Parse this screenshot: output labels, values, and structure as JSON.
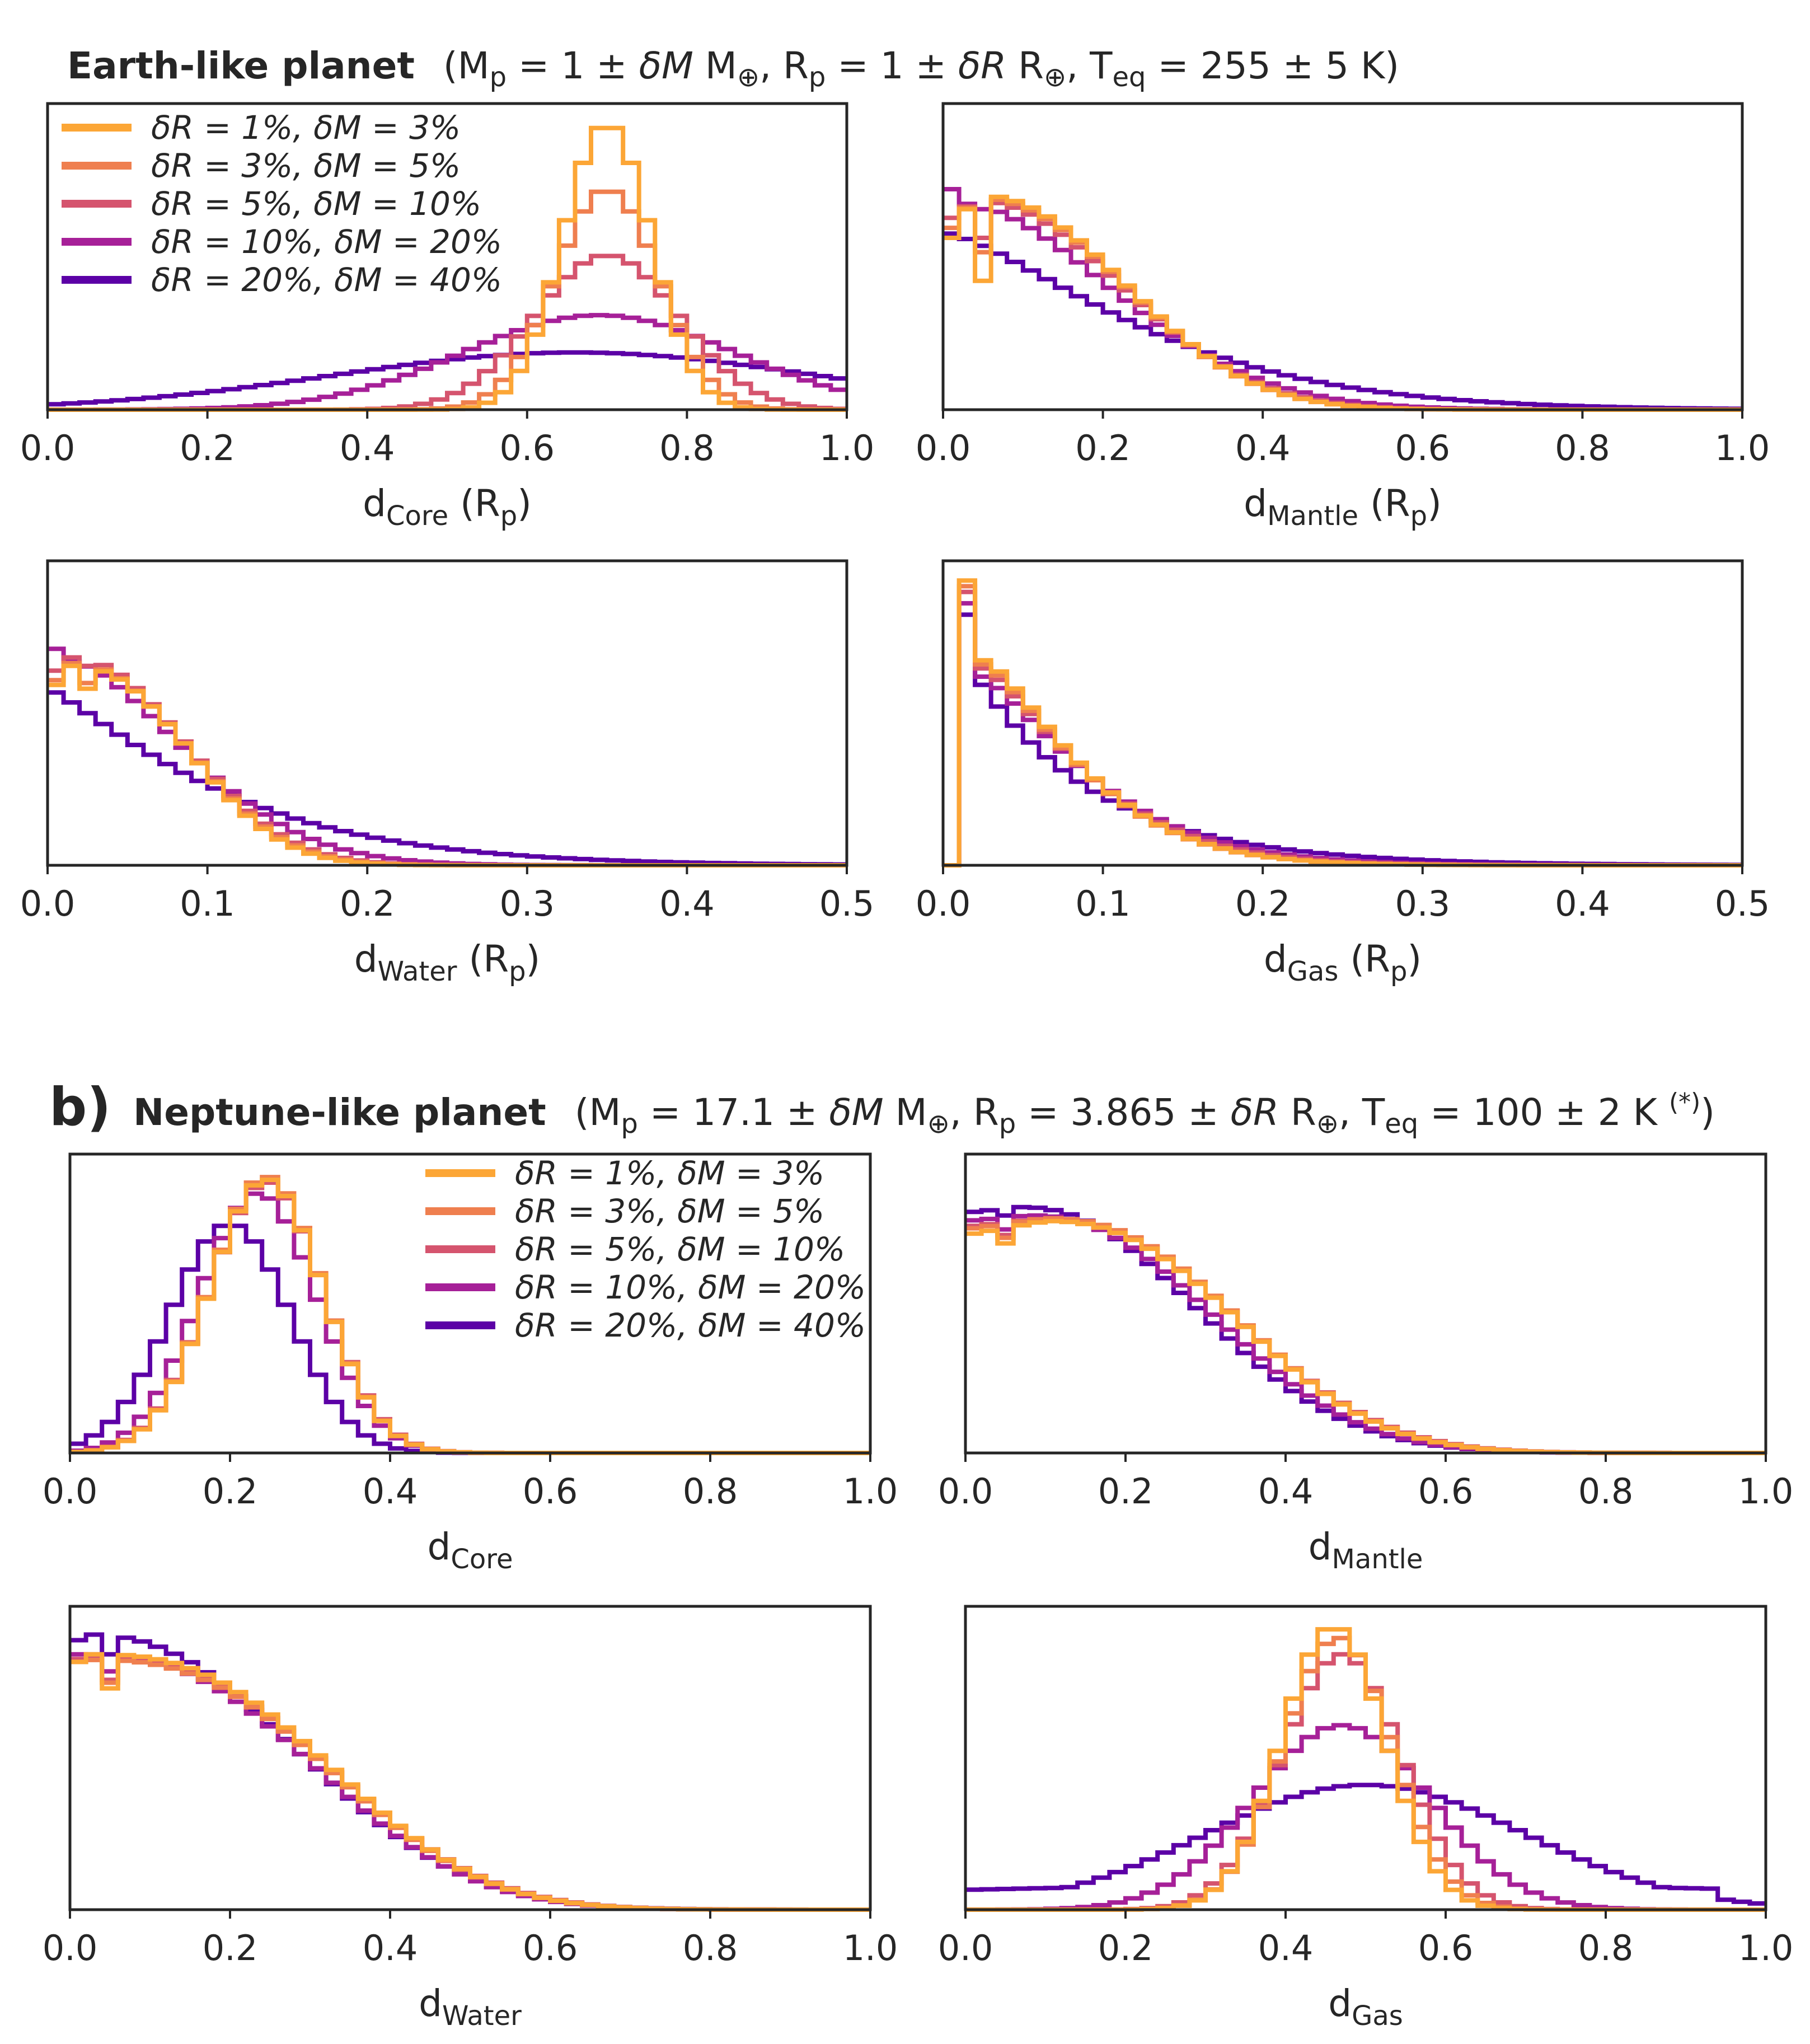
{
  "panel_a": {
    "title_bold": "Earth-like planet",
    "title_params": {
      "mp": "M",
      "mp_sub": "p",
      "mp_eq": " = 1 ± ",
      "dm": "δM",
      "m_unit": " M",
      "earth": "⊕",
      "sep1": ", R",
      "rp_sub": "p",
      "rp_eq": " = 1 ± ",
      "dr": "δR",
      "r_unit": " R",
      "sep2": ", T",
      "teq_sub": "eq",
      "teq_eq": " = 255 ± 5 K)",
      "open": "("
    }
  },
  "panel_b": {
    "label": "b)",
    "title_bold": "Neptune-like planet",
    "title_params": {
      "mp": "M",
      "mp_sub": "p",
      "mp_eq": " = 17.1 ± ",
      "dm": "δM",
      "m_unit": " M",
      "earth": "⊕",
      "sep1": ", R",
      "rp_sub": "p",
      "rp_eq": " = 3.865 ± ",
      "dr": "δR",
      "r_unit": " R",
      "sep2": ", T",
      "teq_sub": "eq",
      "teq_eq": " = 100 ± 2 K ",
      "note": "(*)",
      "close": ")",
      "open": "("
    }
  },
  "legend": [
    {
      "label": "δR = 1%, δM = 3%",
      "color": "#fca636"
    },
    {
      "label": "δR = 3%, δM = 5%",
      "color": "#ef7f4f"
    },
    {
      "label": "δR = 5%, δM = 10%",
      "color": "#d5546e"
    },
    {
      "label": "δR = 10%, δM = 20%",
      "color": "#a62098"
    },
    {
      "label": "δR = 20%, δM = 40%",
      "color": "#5c01a6"
    }
  ],
  "chart_data": [
    {
      "type": "step-histogram",
      "panel": "a",
      "id": "a-core",
      "xlabel_main": "d",
      "xlabel_sub": "Core",
      "xlabel_suffix": " (R",
      "xlabel_suffix_sub": "p",
      "xlabel_close": ")",
      "xlim": [
        0,
        1
      ],
      "ylim": [
        0,
        1
      ],
      "xticks": [
        "0.0",
        "0.2",
        "0.4",
        "0.6",
        "0.8",
        "1.0"
      ],
      "shape": {
        "type": "gauss",
        "lo": 0,
        "hi": 1
      },
      "series": [
        {
          "name": "δR = 1%, δM = 3%",
          "mu": 0.7,
          "sigma": 0.055,
          "amp": 1.0
        },
        {
          "name": "δR = 3%, δM = 5%",
          "mu": 0.7,
          "sigma": 0.065,
          "amp": 0.77
        },
        {
          "name": "δR = 5%, δM = 10%",
          "mu": 0.7,
          "sigma": 0.09,
          "amp": 0.54
        },
        {
          "name": "δR = 10%, δM = 20%",
          "mu": 0.69,
          "sigma": 0.17,
          "amp": 0.33
        },
        {
          "name": "δR = 20%, δM = 40%",
          "mu": 0.66,
          "sigma": 0.3,
          "amp": 0.2
        }
      ]
    },
    {
      "type": "step-histogram",
      "panel": "a",
      "id": "a-mantle",
      "xlabel_main": "d",
      "xlabel_sub": "Mantle",
      "xlabel_suffix": " (R",
      "xlabel_suffix_sub": "p",
      "xlabel_close": ")",
      "xlim": [
        0,
        1
      ],
      "ylim": [
        0,
        1
      ],
      "xticks": [
        "0.0",
        "0.2",
        "0.4",
        "0.6",
        "0.8",
        "1.0"
      ],
      "shape": {
        "type": "decay",
        "lo": 0,
        "hi": 1
      },
      "series": [
        {
          "name": "δR = 1%, δM = 3%",
          "start": 0.55,
          "peak_x": 0.04,
          "peak": 0.75,
          "scale": 0.17,
          "power": 2.2,
          "dip": 0.45
        },
        {
          "name": "δR = 3%, δM = 5%",
          "start": 0.6,
          "peak_x": 0.04,
          "peak": 0.74,
          "scale": 0.17,
          "power": 2.2,
          "dip": 0.55
        },
        {
          "name": "δR = 5%, δM = 10%",
          "start": 0.65,
          "peak_x": 0.04,
          "peak": 0.73,
          "scale": 0.17,
          "power": 2.1,
          "dip": 0.6
        },
        {
          "name": "δR = 10%, δM = 20%",
          "start": 0.82,
          "peak_x": 0.02,
          "peak": 0.72,
          "scale": 0.18,
          "power": 1.9,
          "dip": 0.7
        },
        {
          "name": "δR = 20%, δM = 40%",
          "start": 1.0,
          "peak_x": 0.0,
          "peak": 0.62,
          "scale": 0.2,
          "power": 1.4,
          "dip": 0.62
        }
      ]
    },
    {
      "type": "step-histogram",
      "panel": "a",
      "id": "a-water",
      "xlabel_main": "d",
      "xlabel_sub": "Water",
      "xlabel_suffix": " (R",
      "xlabel_suffix_sub": "p",
      "xlabel_close": ")",
      "xlim": [
        0,
        0.5
      ],
      "ylim": [
        0,
        1
      ],
      "xticks": [
        "0.0",
        "0.1",
        "0.2",
        "0.3",
        "0.4",
        "0.5"
      ],
      "shape": {
        "type": "decay",
        "lo": 0,
        "hi": 0.5
      },
      "series": [
        {
          "name": "δR = 1%, δM = 3%",
          "start": 0.6,
          "peak_x": 0.03,
          "peak": 0.7,
          "scale": 0.13,
          "power": 2.3,
          "dip": 0.62
        },
        {
          "name": "δR = 3%, δM = 5%",
          "start": 0.62,
          "peak_x": 0.03,
          "peak": 0.71,
          "scale": 0.13,
          "power": 2.2,
          "dip": 0.64
        },
        {
          "name": "δR = 5%, δM = 10%",
          "start": 0.66,
          "peak_x": 0.03,
          "peak": 0.73,
          "scale": 0.13,
          "power": 2.1,
          "dip": 0.7
        },
        {
          "name": "δR = 10%, δM = 20%",
          "start": 0.8,
          "peak_x": 0.02,
          "peak": 0.72,
          "scale": 0.14,
          "power": 1.8,
          "dip": 0.72
        },
        {
          "name": "δR = 20%, δM = 40%",
          "start": 1.0,
          "peak_x": 0.0,
          "peak": 0.62,
          "scale": 0.16,
          "power": 1.2,
          "dip": 0.62
        }
      ]
    },
    {
      "type": "step-histogram",
      "panel": "a",
      "id": "a-gas",
      "xlabel_main": "d",
      "xlabel_sub": "Gas",
      "xlabel_suffix": " (R",
      "xlabel_suffix_sub": "p",
      "xlabel_close": ")",
      "xlim": [
        0,
        0.5
      ],
      "ylim": [
        0,
        1
      ],
      "xticks": [
        "0.0",
        "0.1",
        "0.2",
        "0.3",
        "0.4",
        "0.5"
      ],
      "shape": {
        "type": "gaslike",
        "lo": 0,
        "hi": 0.5
      },
      "series": [
        {
          "name": "δR = 1%, δM = 3%",
          "peak": 1.0,
          "scale": 0.06,
          "power": 1.4
        },
        {
          "name": "δR = 3%, δM = 5%",
          "peak": 0.98,
          "scale": 0.06,
          "power": 1.4
        },
        {
          "name": "δR = 5%, δM = 10%",
          "peak": 0.96,
          "scale": 0.062,
          "power": 1.35
        },
        {
          "name": "δR = 10%, δM = 20%",
          "peak": 0.92,
          "scale": 0.065,
          "power": 1.3
        },
        {
          "name": "δR = 20%, δM = 40%",
          "peak": 0.88,
          "scale": 0.06,
          "power": 1.0
        }
      ]
    },
    {
      "type": "step-histogram",
      "panel": "b",
      "id": "b-core",
      "xlabel_main": "d",
      "xlabel_sub": "Core",
      "xlabel_suffix": "",
      "xlabel_suffix_sub": "",
      "xlabel_close": "",
      "xlim": [
        0,
        1
      ],
      "ylim": [
        0,
        1
      ],
      "xticks": [
        "0.0",
        "0.2",
        "0.4",
        "0.6",
        "0.8",
        "1.0"
      ],
      "shape": {
        "type": "gauss",
        "lo": 0,
        "hi": 1
      },
      "series": [
        {
          "name": "δR = 1%, δM = 3%",
          "mu": 0.245,
          "sigma": 0.07,
          "amp": 0.98
        },
        {
          "name": "δR = 3%, δM = 5%",
          "mu": 0.245,
          "sigma": 0.07,
          "amp": 0.99
        },
        {
          "name": "δR = 5%, δM = 10%",
          "mu": 0.245,
          "sigma": 0.071,
          "amp": 0.97
        },
        {
          "name": "δR = 10%, δM = 20%",
          "mu": 0.235,
          "sigma": 0.073,
          "amp": 0.93
        },
        {
          "name": "δR = 20%, δM = 40%",
          "mu": 0.2,
          "sigma": 0.075,
          "amp": 0.82
        }
      ]
    },
    {
      "type": "step-histogram",
      "panel": "b",
      "id": "b-mantle",
      "xlabel_main": "d",
      "xlabel_sub": "Mantle",
      "xlabel_suffix": "",
      "xlabel_suffix_sub": "",
      "xlabel_close": "",
      "xlim": [
        0,
        1
      ],
      "ylim": [
        0,
        1
      ],
      "xticks": [
        "0.0",
        "0.2",
        "0.4",
        "0.6",
        "0.8",
        "1.0"
      ],
      "shape": {
        "type": "decay",
        "lo": 0,
        "hi": 1
      },
      "series": [
        {
          "name": "δR = 1%, δM = 3%",
          "start": 0.78,
          "peak_x": 0.1,
          "peak": 0.83,
          "scale": 0.21,
          "power": 2.4,
          "dip": 0.75
        },
        {
          "name": "δR = 3%, δM = 5%",
          "start": 0.8,
          "peak_x": 0.1,
          "peak": 0.84,
          "scale": 0.21,
          "power": 2.4,
          "dip": 0.77
        },
        {
          "name": "δR = 5%, δM = 10%",
          "start": 0.81,
          "peak_x": 0.1,
          "peak": 0.84,
          "scale": 0.21,
          "power": 2.35,
          "dip": 0.78
        },
        {
          "name": "δR = 10%, δM = 20%",
          "start": 0.83,
          "peak_x": 0.08,
          "peak": 0.85,
          "scale": 0.205,
          "power": 2.3,
          "dip": 0.8
        },
        {
          "name": "δR = 20%, δM = 40%",
          "start": 0.86,
          "peak_x": 0.07,
          "peak": 0.88,
          "scale": 0.2,
          "power": 2.2,
          "dip": 0.85
        }
      ]
    },
    {
      "type": "step-histogram",
      "panel": "b",
      "id": "b-water",
      "xlabel_main": "d",
      "xlabel_sub": "Water",
      "xlabel_suffix": "",
      "xlabel_suffix_sub": "",
      "xlabel_close": "",
      "xlim": [
        0,
        1
      ],
      "ylim": [
        0,
        1
      ],
      "xticks": [
        "0.0",
        "0.2",
        "0.4",
        "0.6",
        "0.8",
        "1.0"
      ],
      "shape": {
        "type": "decay",
        "lo": 0,
        "hi": 1
      },
      "series": [
        {
          "name": "δR = 1%, δM = 3%",
          "start": 0.86,
          "peak_x": 0.03,
          "peak": 0.9,
          "scale": 0.25,
          "power": 2.6,
          "dip": 0.78
        },
        {
          "name": "δR = 3%, δM = 5%",
          "start": 0.87,
          "peak_x": 0.03,
          "peak": 0.88,
          "scale": 0.25,
          "power": 2.6,
          "dip": 0.8
        },
        {
          "name": "δR = 5%, δM = 10%",
          "start": 0.88,
          "peak_x": 0.03,
          "peak": 0.89,
          "scale": 0.25,
          "power": 2.55,
          "dip": 0.81
        },
        {
          "name": "δR = 10%, δM = 20%",
          "start": 0.9,
          "peak_x": 0.02,
          "peak": 0.9,
          "scale": 0.245,
          "power": 2.5,
          "dip": 0.84
        },
        {
          "name": "δR = 20%, δM = 40%",
          "start": 0.93,
          "peak_x": 0.02,
          "peak": 0.97,
          "scale": 0.235,
          "power": 2.3,
          "dip": 0.9
        }
      ]
    },
    {
      "type": "step-histogram",
      "panel": "b",
      "id": "b-gas",
      "xlabel_main": "d",
      "xlabel_sub": "Gas",
      "xlabel_suffix": "",
      "xlabel_suffix_sub": "",
      "xlabel_close": "",
      "xlim": [
        0,
        1
      ],
      "ylim": [
        0,
        1
      ],
      "xticks": [
        "0.0",
        "0.2",
        "0.4",
        "0.6",
        "0.8",
        "1.0"
      ],
      "shape": {
        "type": "gauss",
        "lo": 0,
        "hi": 1
      },
      "series": [
        {
          "name": "δR = 1%, δM = 3%",
          "mu": 0.46,
          "sigma": 0.065,
          "amp": 1.0
        },
        {
          "name": "δR = 3%, δM = 5%",
          "mu": 0.465,
          "sigma": 0.068,
          "amp": 0.96
        },
        {
          "name": "δR = 5%, δM = 10%",
          "mu": 0.47,
          "sigma": 0.075,
          "amp": 0.9
        },
        {
          "name": "δR = 10%, δM = 20%",
          "mu": 0.47,
          "sigma": 0.11,
          "amp": 0.65
        },
        {
          "name": "δR = 20%, δM = 40%",
          "mu": 0.5,
          "sigma": 0.2,
          "amp": 0.44,
          "floor": 0.1
        }
      ]
    }
  ]
}
